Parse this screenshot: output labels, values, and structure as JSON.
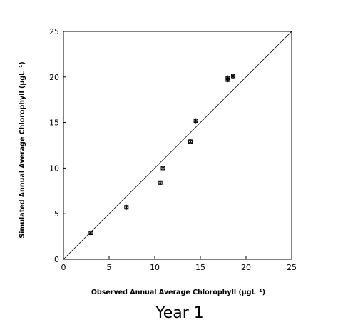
{
  "chart_data": {
    "type": "scatter",
    "caption": "Year 1",
    "xlabel": "Observed Annual Average Chlorophyll (μgL⁻¹)",
    "ylabel": "Simulated Annual Average Chlorophyll (μgL⁻¹)",
    "xlim": [
      0,
      25
    ],
    "ylim": [
      0,
      25
    ],
    "x_ticks": [
      "0",
      "5",
      "10",
      "15",
      "20",
      "25"
    ],
    "y_ticks": [
      "0",
      "5",
      "10",
      "15",
      "20",
      "25"
    ],
    "grid": false,
    "reference_line": "1:1",
    "points": [
      {
        "x": 3.0,
        "y": 2.9
      },
      {
        "x": 6.9,
        "y": 5.7
      },
      {
        "x": 10.6,
        "y": 8.4
      },
      {
        "x": 10.9,
        "y": 10.0
      },
      {
        "x": 13.9,
        "y": 12.9
      },
      {
        "x": 14.5,
        "y": 15.2
      },
      {
        "x": 18.0,
        "y": 19.7
      },
      {
        "x": 18.0,
        "y": 19.9
      },
      {
        "x": 18.6,
        "y": 20.1
      }
    ]
  }
}
